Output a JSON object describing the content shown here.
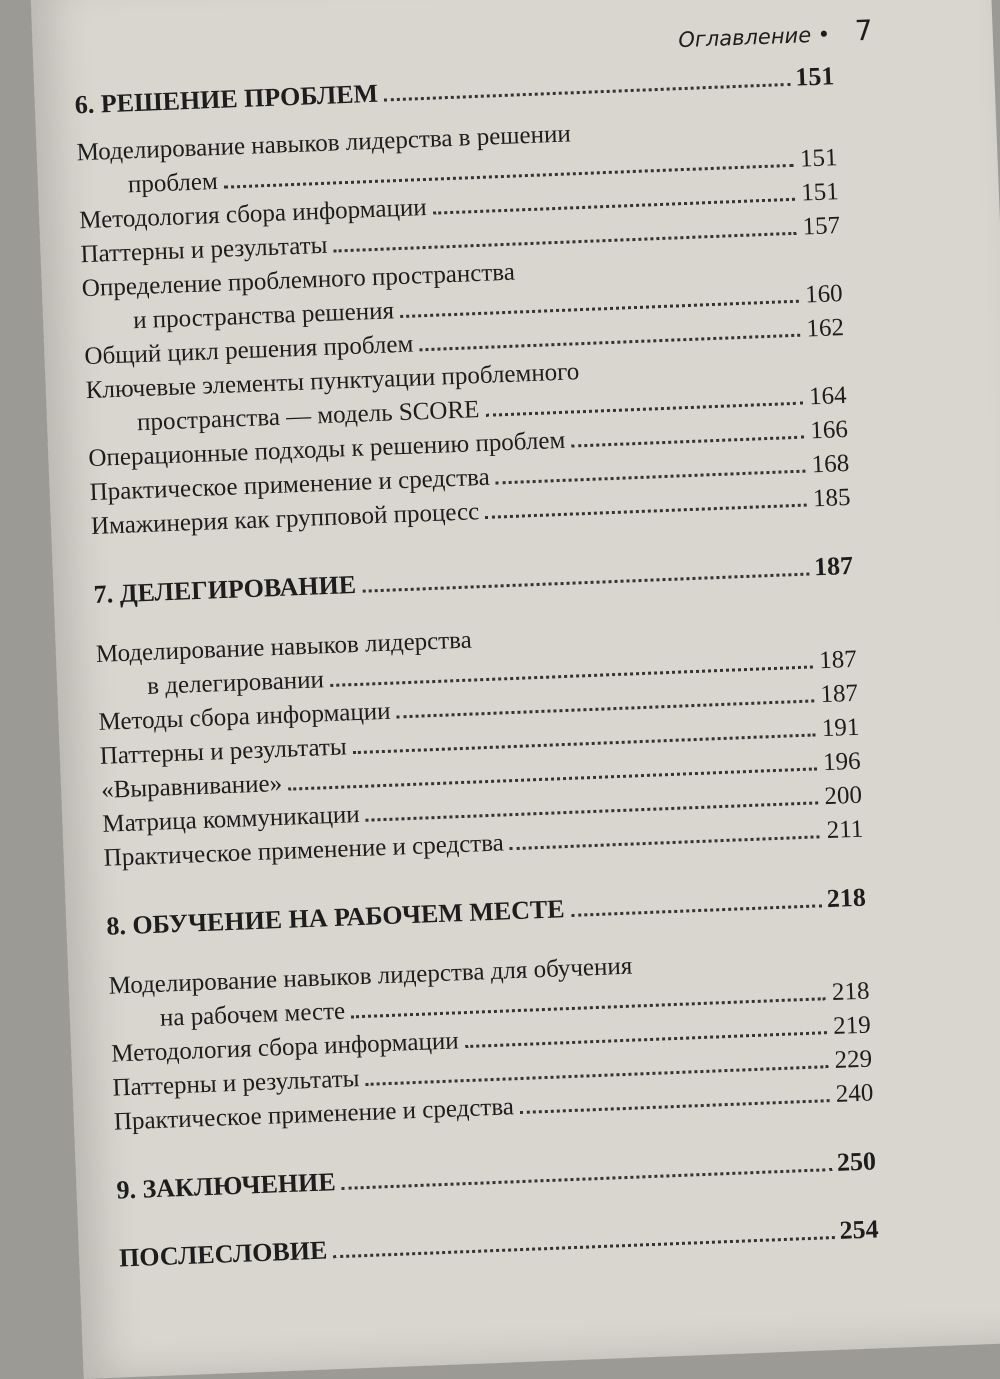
{
  "header": {
    "title": "Оглавление",
    "bullet": "•",
    "page": "7"
  },
  "chapters": [
    {
      "title": "6. РЕШЕНИЕ ПРОБЛЕМ",
      "page": "151",
      "entries": [
        {
          "line1": "Моделирование навыков лидерства в решении",
          "text": "проблем",
          "page": "151"
        },
        {
          "text": "Методология сбора информации",
          "page": "151"
        },
        {
          "text": "Паттерны и результаты",
          "page": "157"
        },
        {
          "line1": "Определение проблемного пространства",
          "text": "и пространства решения",
          "page": "160"
        },
        {
          "text": "Общий цикл решения проблем",
          "page": "162"
        },
        {
          "line1": "Ключевые элементы пунктуации проблемного",
          "text": "пространства — модель SCORE",
          "page": "164"
        },
        {
          "text": "Операционные подходы к решению проблем",
          "page": "166"
        },
        {
          "text": "Практическое применение и средства",
          "page": "168"
        },
        {
          "text": "Имажинерия как групповой процесс",
          "page": "185"
        }
      ]
    },
    {
      "title": "7. ДЕЛЕГИРОВАНИЕ",
      "page": "187",
      "entries": [
        {
          "line1": "Моделирование навыков лидерства",
          "text": "в делегировании",
          "page": "187"
        },
        {
          "text": "Методы сбора информации",
          "page": "187"
        },
        {
          "text": "Паттерны и результаты",
          "page": "191"
        },
        {
          "text": "«Выравнивание»",
          "page": "196"
        },
        {
          "text": "Матрица коммуникации",
          "page": "200"
        },
        {
          "text": "Практическое применение и средства",
          "page": "211"
        }
      ]
    },
    {
      "title": "8. ОБУЧЕНИЕ НА РАБОЧЕМ МЕСТЕ",
      "page": "218",
      "entries": [
        {
          "line1": "Моделирование навыков лидерства для обучения",
          "text": "на рабочем месте",
          "page": "218"
        },
        {
          "text": "Методология сбора информации",
          "page": "219"
        },
        {
          "text": "Паттерны и результаты",
          "page": "229"
        },
        {
          "text": "Практическое применение и средства",
          "page": "240"
        }
      ]
    },
    {
      "title": "9. ЗАКЛЮЧЕНИЕ",
      "page": "250",
      "entries": []
    },
    {
      "title": "ПОСЛЕСЛОВИЕ",
      "page": "254",
      "entries": []
    }
  ]
}
